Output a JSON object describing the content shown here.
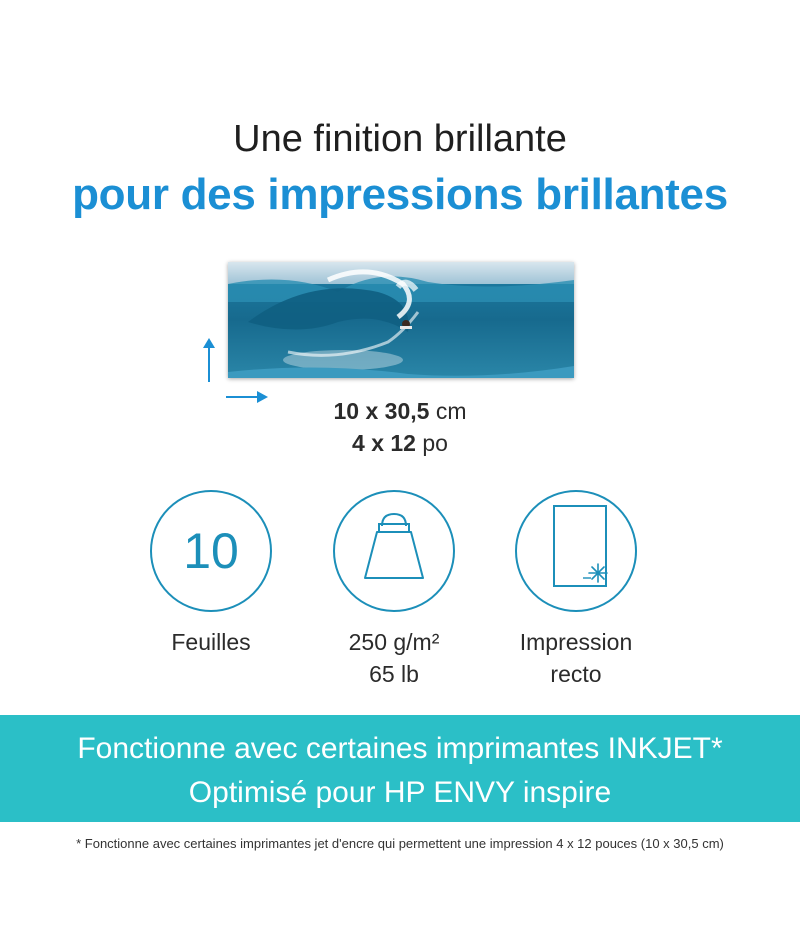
{
  "heading": {
    "line1": "Une finition brillante",
    "line2": "pour des impressions brillantes"
  },
  "photo": {
    "description_icon": "surf-wave-photo"
  },
  "size": {
    "cm_value": "10 x 30,5",
    "cm_unit": "cm",
    "in_value": "4 x 12",
    "in_unit": "po"
  },
  "features": [
    {
      "icon": "sheet-count",
      "number": "10",
      "label": "Feuilles"
    },
    {
      "icon": "weight-icon",
      "label_line1": "250 g/m²",
      "label_line2": "65 lb"
    },
    {
      "icon": "single-sided-print-icon",
      "label_line1": "Impression",
      "label_line2": "recto"
    }
  ],
  "banner": {
    "line1": "Fonctionne avec certaines imprimantes INKJET*",
    "line2": "Optimisé pour HP ENVY inspire",
    "color": "#2bbfc7"
  },
  "footnote": "* Fonctionne avec certaines imprimantes jet d'encre qui permettent une impression 4 x 12 pouces (10 x 30,5 cm)",
  "colors": {
    "accent_blue": "#1b8fd4",
    "icon_teal": "#1c8fb9"
  }
}
